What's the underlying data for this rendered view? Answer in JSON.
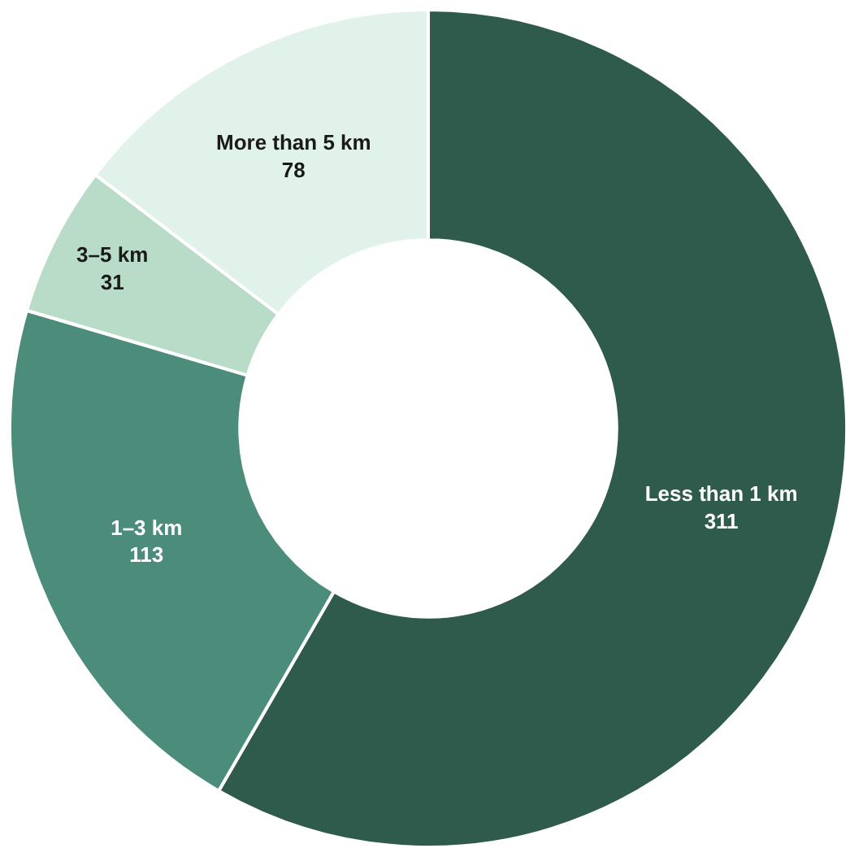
{
  "chart_data": {
    "type": "donut",
    "categories": [
      "Less than 1 km",
      "1–3 km",
      "3–5 km",
      "More than 5 km"
    ],
    "values": [
      311,
      113,
      31,
      78
    ],
    "colors": [
      "#2e5b4c",
      "#4b8c7a",
      "#b8dcc8",
      "#e0f2ea"
    ],
    "data_labels": true,
    "legend": false
  }
}
